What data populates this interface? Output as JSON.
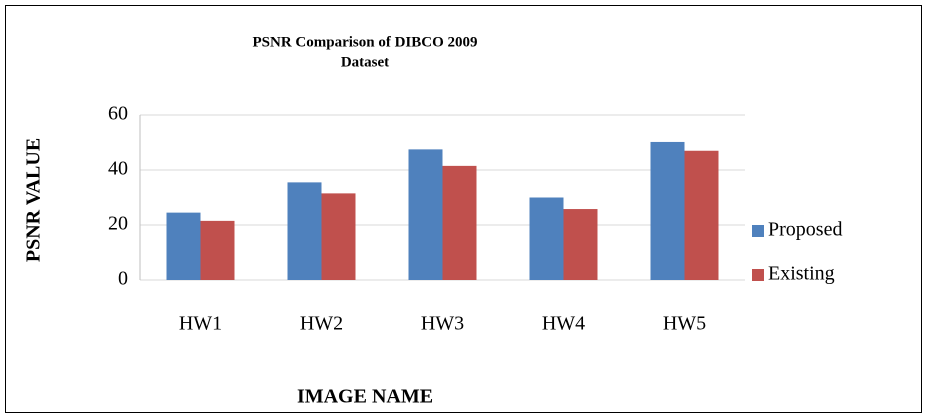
{
  "chart_data": {
    "type": "bar",
    "title": "PSNR Comparison of  DIBCO 2009",
    "subtitle": "Dataset",
    "x_label": "IMAGE NAME",
    "y_label": "PSNR VALUE",
    "categories": [
      "HW1",
      "HW2",
      "HW3",
      "HW4",
      "HW5"
    ],
    "series": [
      {
        "name": "Proposed",
        "color": "#4f81bd",
        "values": [
          24.5,
          35.5,
          47.5,
          30,
          50.2
        ]
      },
      {
        "name": "Existing",
        "color": "#c0504d",
        "values": [
          21.5,
          31.5,
          41.5,
          25.8,
          47
        ]
      }
    ],
    "ylim": [
      0,
      60
    ],
    "yticks": [
      0,
      20,
      40,
      60
    ],
    "grid": true,
    "legend": "right"
  }
}
